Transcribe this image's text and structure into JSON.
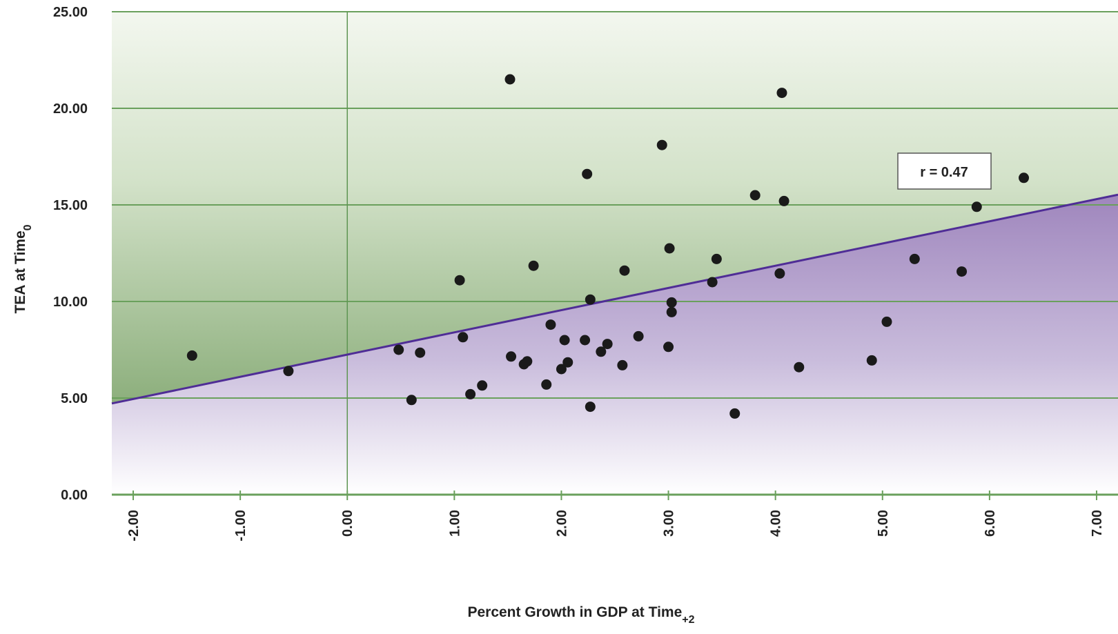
{
  "chart_data": {
    "type": "scatter",
    "title": "",
    "xlabel": "Percent Growth in GDP at Time",
    "xlabel_subscript": "+2",
    "ylabel": "TEA at Time",
    "ylabel_subscript": "0",
    "xlim": [
      -2.2,
      7.2
    ],
    "ylim": [
      0,
      25
    ],
    "x_ticks": [
      "-2.00",
      "-1.00",
      "0.00",
      "1.00",
      "2.00",
      "3.00",
      "4.00",
      "5.00",
      "6.00",
      "7.00"
    ],
    "y_ticks": [
      "0.00",
      "5.00",
      "10.00",
      "15.00",
      "20.00",
      "25.00"
    ],
    "grid": "horizontal",
    "trendline": {
      "intercept": 7.25,
      "slope": 1.15
    },
    "annotation": "r = 0.47",
    "points": [
      {
        "x": -1.45,
        "y": 7.2
      },
      {
        "x": -0.55,
        "y": 6.4
      },
      {
        "x": 0.48,
        "y": 7.5
      },
      {
        "x": 0.6,
        "y": 4.9
      },
      {
        "x": 0.68,
        "y": 7.35
      },
      {
        "x": 1.05,
        "y": 11.1
      },
      {
        "x": 1.08,
        "y": 8.15
      },
      {
        "x": 1.15,
        "y": 5.2
      },
      {
        "x": 1.26,
        "y": 5.65
      },
      {
        "x": 1.52,
        "y": 21.5
      },
      {
        "x": 1.53,
        "y": 7.15
      },
      {
        "x": 1.65,
        "y": 6.75
      },
      {
        "x": 1.68,
        "y": 6.9
      },
      {
        "x": 1.74,
        "y": 11.85
      },
      {
        "x": 1.86,
        "y": 5.7
      },
      {
        "x": 1.9,
        "y": 8.8
      },
      {
        "x": 2.0,
        "y": 6.5
      },
      {
        "x": 2.03,
        "y": 8.0
      },
      {
        "x": 2.06,
        "y": 6.85
      },
      {
        "x": 2.22,
        "y": 8.0
      },
      {
        "x": 2.24,
        "y": 16.6
      },
      {
        "x": 2.27,
        "y": 10.1
      },
      {
        "x": 2.27,
        "y": 4.55
      },
      {
        "x": 2.37,
        "y": 7.4
      },
      {
        "x": 2.43,
        "y": 7.8
      },
      {
        "x": 2.57,
        "y": 6.7
      },
      {
        "x": 2.59,
        "y": 11.6
      },
      {
        "x": 2.72,
        "y": 8.2
      },
      {
        "x": 2.94,
        "y": 18.1
      },
      {
        "x": 3.0,
        "y": 7.65
      },
      {
        "x": 3.01,
        "y": 12.75
      },
      {
        "x": 3.03,
        "y": 9.95
      },
      {
        "x": 3.03,
        "y": 9.45
      },
      {
        "x": 3.41,
        "y": 11.0
      },
      {
        "x": 3.45,
        "y": 12.2
      },
      {
        "x": 3.62,
        "y": 4.2
      },
      {
        "x": 3.81,
        "y": 15.5
      },
      {
        "x": 4.04,
        "y": 11.45
      },
      {
        "x": 4.06,
        "y": 20.8
      },
      {
        "x": 4.08,
        "y": 15.2
      },
      {
        "x": 4.22,
        "y": 6.6
      },
      {
        "x": 4.9,
        "y": 6.95
      },
      {
        "x": 5.04,
        "y": 8.95
      },
      {
        "x": 5.3,
        "y": 12.2
      },
      {
        "x": 5.74,
        "y": 11.55
      },
      {
        "x": 5.88,
        "y": 14.9
      },
      {
        "x": 6.32,
        "y": 16.4
      }
    ]
  }
}
